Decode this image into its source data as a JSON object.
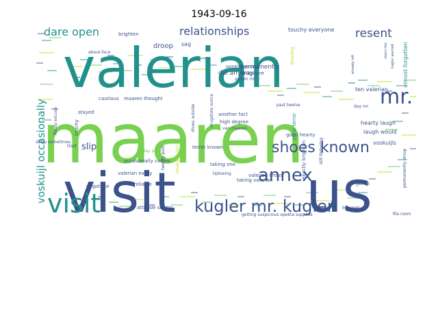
{
  "title": "1943-09-16",
  "palette": {
    "dark_blue": "#3b528b",
    "teal": "#21918c",
    "green": "#5ec962",
    "purple": "#472c7a",
    "yellow": "#b8de29",
    "light_green": "#7ad151"
  },
  "words": [
    {
      "text": "visit",
      "color": "#3b528b"
    },
    {
      "text": "us",
      "color": "#3b528b"
    },
    {
      "text": "maaren",
      "color": "#7ad151"
    },
    {
      "text": "valerian",
      "color": "#21918c"
    },
    {
      "text": "visit",
      "color": "#21918c"
    },
    {
      "text": "kugler mr. kugler",
      "color": "#3b528b"
    },
    {
      "text": "annex",
      "color": "#3b528b"
    },
    {
      "text": "shoes known",
      "color": "#3b528b"
    },
    {
      "text": "mr.",
      "color": "#3b528b"
    },
    {
      "text": "relationships",
      "color": "#3b528b"
    },
    {
      "text": "dare open",
      "color": "#21918c"
    },
    {
      "text": "resent",
      "color": "#3b528b"
    },
    {
      "text": "voskuijl occasionally",
      "color": "#21918c"
    },
    {
      "text": "slip",
      "color": "#3b528b"
    },
    {
      "text": "droop",
      "color": "#3b528b"
    },
    {
      "text": "brighten",
      "color": "#3b528b"
    },
    {
      "text": "sag",
      "color": "#3b528b"
    },
    {
      "text": "touchy everyone",
      "color": "#3b528b"
    },
    {
      "text": "die anyway",
      "color": "#3b528b"
    },
    {
      "text": "permanently",
      "color": "#3b528b"
    },
    {
      "text": "drugstore",
      "color": "#3b528b"
    },
    {
      "text": "gotten rid",
      "color": "#3b528b"
    },
    {
      "text": "cautious",
      "color": "#3b528b"
    },
    {
      "text": "maaren thought",
      "color": "#3b528b"
    },
    {
      "text": "stayed",
      "color": "#3b528b"
    },
    {
      "text": "another fact",
      "color": "#3b528b"
    },
    {
      "text": "high degree",
      "color": "#3b528b"
    },
    {
      "text": "van maaren",
      "color": "#3b528b"
    },
    {
      "text": "terror known",
      "color": "#3b528b"
    },
    {
      "text": "occasionally comes",
      "color": "#3b528b"
    },
    {
      "text": "valerian every",
      "color": "#3b528b"
    },
    {
      "text": "attitude seems",
      "color": "#3b528b"
    },
    {
      "text": "negotiate",
      "color": "#3b528b"
    },
    {
      "text": "unreliable",
      "color": "#3b528b"
    },
    {
      "text": "touchy",
      "color": "#3b528b"
    },
    {
      "text": "thief",
      "color": "#3b528b"
    },
    {
      "text": "taking one",
      "color": "#3b528b"
    },
    {
      "text": "taking valerian",
      "color": "#3b528b"
    },
    {
      "text": "valerian drops",
      "color": "#3b528b"
    },
    {
      "text": "tiptoeing",
      "color": "#3b528b"
    },
    {
      "text": "great terror",
      "color": "#21918c"
    },
    {
      "text": "exactly brighten",
      "color": "#3b528b"
    },
    {
      "text": "good hearty",
      "color": "#3b528b"
    },
    {
      "text": "hearty laugh",
      "color": "#3b528b"
    },
    {
      "text": "laugh would",
      "color": "#3b528b"
    },
    {
      "text": "ten valerian",
      "color": "#3b528b"
    },
    {
      "text": "almost forgotten",
      "color": "#21918c"
    },
    {
      "text": "voskuijls",
      "color": "#3b528b"
    },
    {
      "text": "permanently droop",
      "color": "#3b528b"
    },
    {
      "text": "file room",
      "color": "#3b528b"
    },
    {
      "text": "getting suspicious opekta supplies",
      "color": "#3b528b"
    },
    {
      "text": "day mr.",
      "color": "#3b528b"
    },
    {
      "text": "get mr.",
      "color": "#3b528b"
    },
    {
      "text": "past twelve",
      "color": "#3b528b"
    },
    {
      "text": "dreading",
      "color": "#b8de29"
    },
    {
      "text": "kugler wanted",
      "color": "#3b528b"
    },
    {
      "text": "stairs like",
      "color": "#3b528b"
    },
    {
      "text": "already left",
      "color": "#3b528b"
    },
    {
      "text": "sometimes says",
      "color": "#3b528b"
    },
    {
      "text": "shoes outside",
      "color": "#3b528b"
    },
    {
      "text": "drugstore ounce",
      "color": "#3b528b"
    },
    {
      "text": "flimsy excuse",
      "color": "#3b528b"
    },
    {
      "text": "sleep sometimes",
      "color": "#3b528b"
    },
    {
      "text": "about-face",
      "color": "#3b528b"
    },
    {
      "text": "twenty past",
      "color": "#3b528b"
    },
    {
      "text": "strangest fact",
      "color": "#b8de29"
    },
    {
      "text": "stay put",
      "color": "#5ec962"
    },
    {
      "text": "bep met",
      "color": "#3b528b"
    },
    {
      "text": "still tiptoeing",
      "color": "#3b528b"
    }
  ]
}
